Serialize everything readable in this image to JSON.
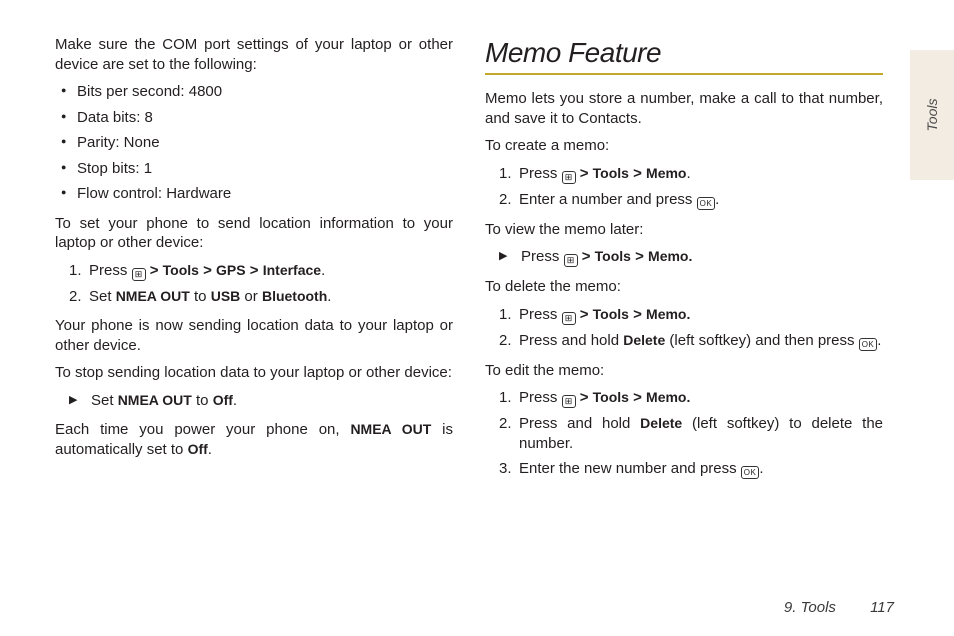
{
  "colors": {
    "accent": "#c2a92e",
    "text": "#231f20",
    "side_tab_bg": "#f2ece2"
  },
  "side_tab": {
    "label": "Tools"
  },
  "footer": {
    "section": "9. Tools",
    "page": "117"
  },
  "left": {
    "intro": "Make sure the COM port settings of your laptop or other device are set to the following:",
    "bullets": [
      "Bits per second: 4800",
      "Data bits: 8",
      "Parity: None",
      "Stop bits: 1",
      "Flow control: Hardware"
    ],
    "set_intro": "To set your phone to send location information to your laptop or other device:",
    "step1_a": "Press ",
    "step1_path": [
      ">",
      "Tools",
      ">",
      "GPS",
      ">",
      "Interface"
    ],
    "step1_end": ".",
    "step2_a": "Set ",
    "step2_nmea": "NMEA OUT",
    "step2_b": " to ",
    "step2_usb": "USB",
    "step2_c": " or ",
    "step2_bt": "Bluetooth",
    "step2_end": ".",
    "after_set": "Your phone is now sending location data to your laptop or other device.",
    "stop_intro": "To stop sending location data to your laptop or other device:",
    "stop_a": "Set ",
    "stop_nmea": "NMEA OUT",
    "stop_b": " to ",
    "stop_off": "Off",
    "stop_end": ".",
    "closing_a": "Each time you power your phone on, ",
    "closing_nmea": "NMEA OUT",
    "closing_b": " is automatically set to ",
    "closing_off": "Off",
    "closing_end": "."
  },
  "right": {
    "title": "Memo Feature",
    "intro": "Memo lets you store a number, make a call to that number, and save it to Contacts.",
    "create_intro": "To create a memo:",
    "c1_a": "Press ",
    "c1_path": [
      ">",
      "Tools",
      ">",
      "Memo"
    ],
    "c1_end": ".",
    "c2_a": "Enter a number and press ",
    "c2_end": ".",
    "view_intro": "To view the memo later:",
    "v1_a": "Press ",
    "v1_path": [
      ">",
      "Tools",
      ">",
      "Memo."
    ],
    "delete_intro": "To delete the memo:",
    "d1_a": "Press ",
    "d1_path": [
      ">",
      "Tools",
      ">",
      "Memo."
    ],
    "d2_a": "Press and hold ",
    "d2_del": "Delete",
    "d2_b": " (left softkey) and then press ",
    "d2_end": ".",
    "edit_intro": "To edit the memo:",
    "e1_a": "Press ",
    "e1_path": [
      ">",
      "Tools",
      ">",
      "Memo."
    ],
    "e2_a": "Press and hold ",
    "e2_del": "Delete",
    "e2_b": " (left softkey) to delete the number.",
    "e3_a": "Enter the new number and press ",
    "e3_end": "."
  },
  "icons": {
    "menu": "⊞",
    "ok": "OK"
  }
}
